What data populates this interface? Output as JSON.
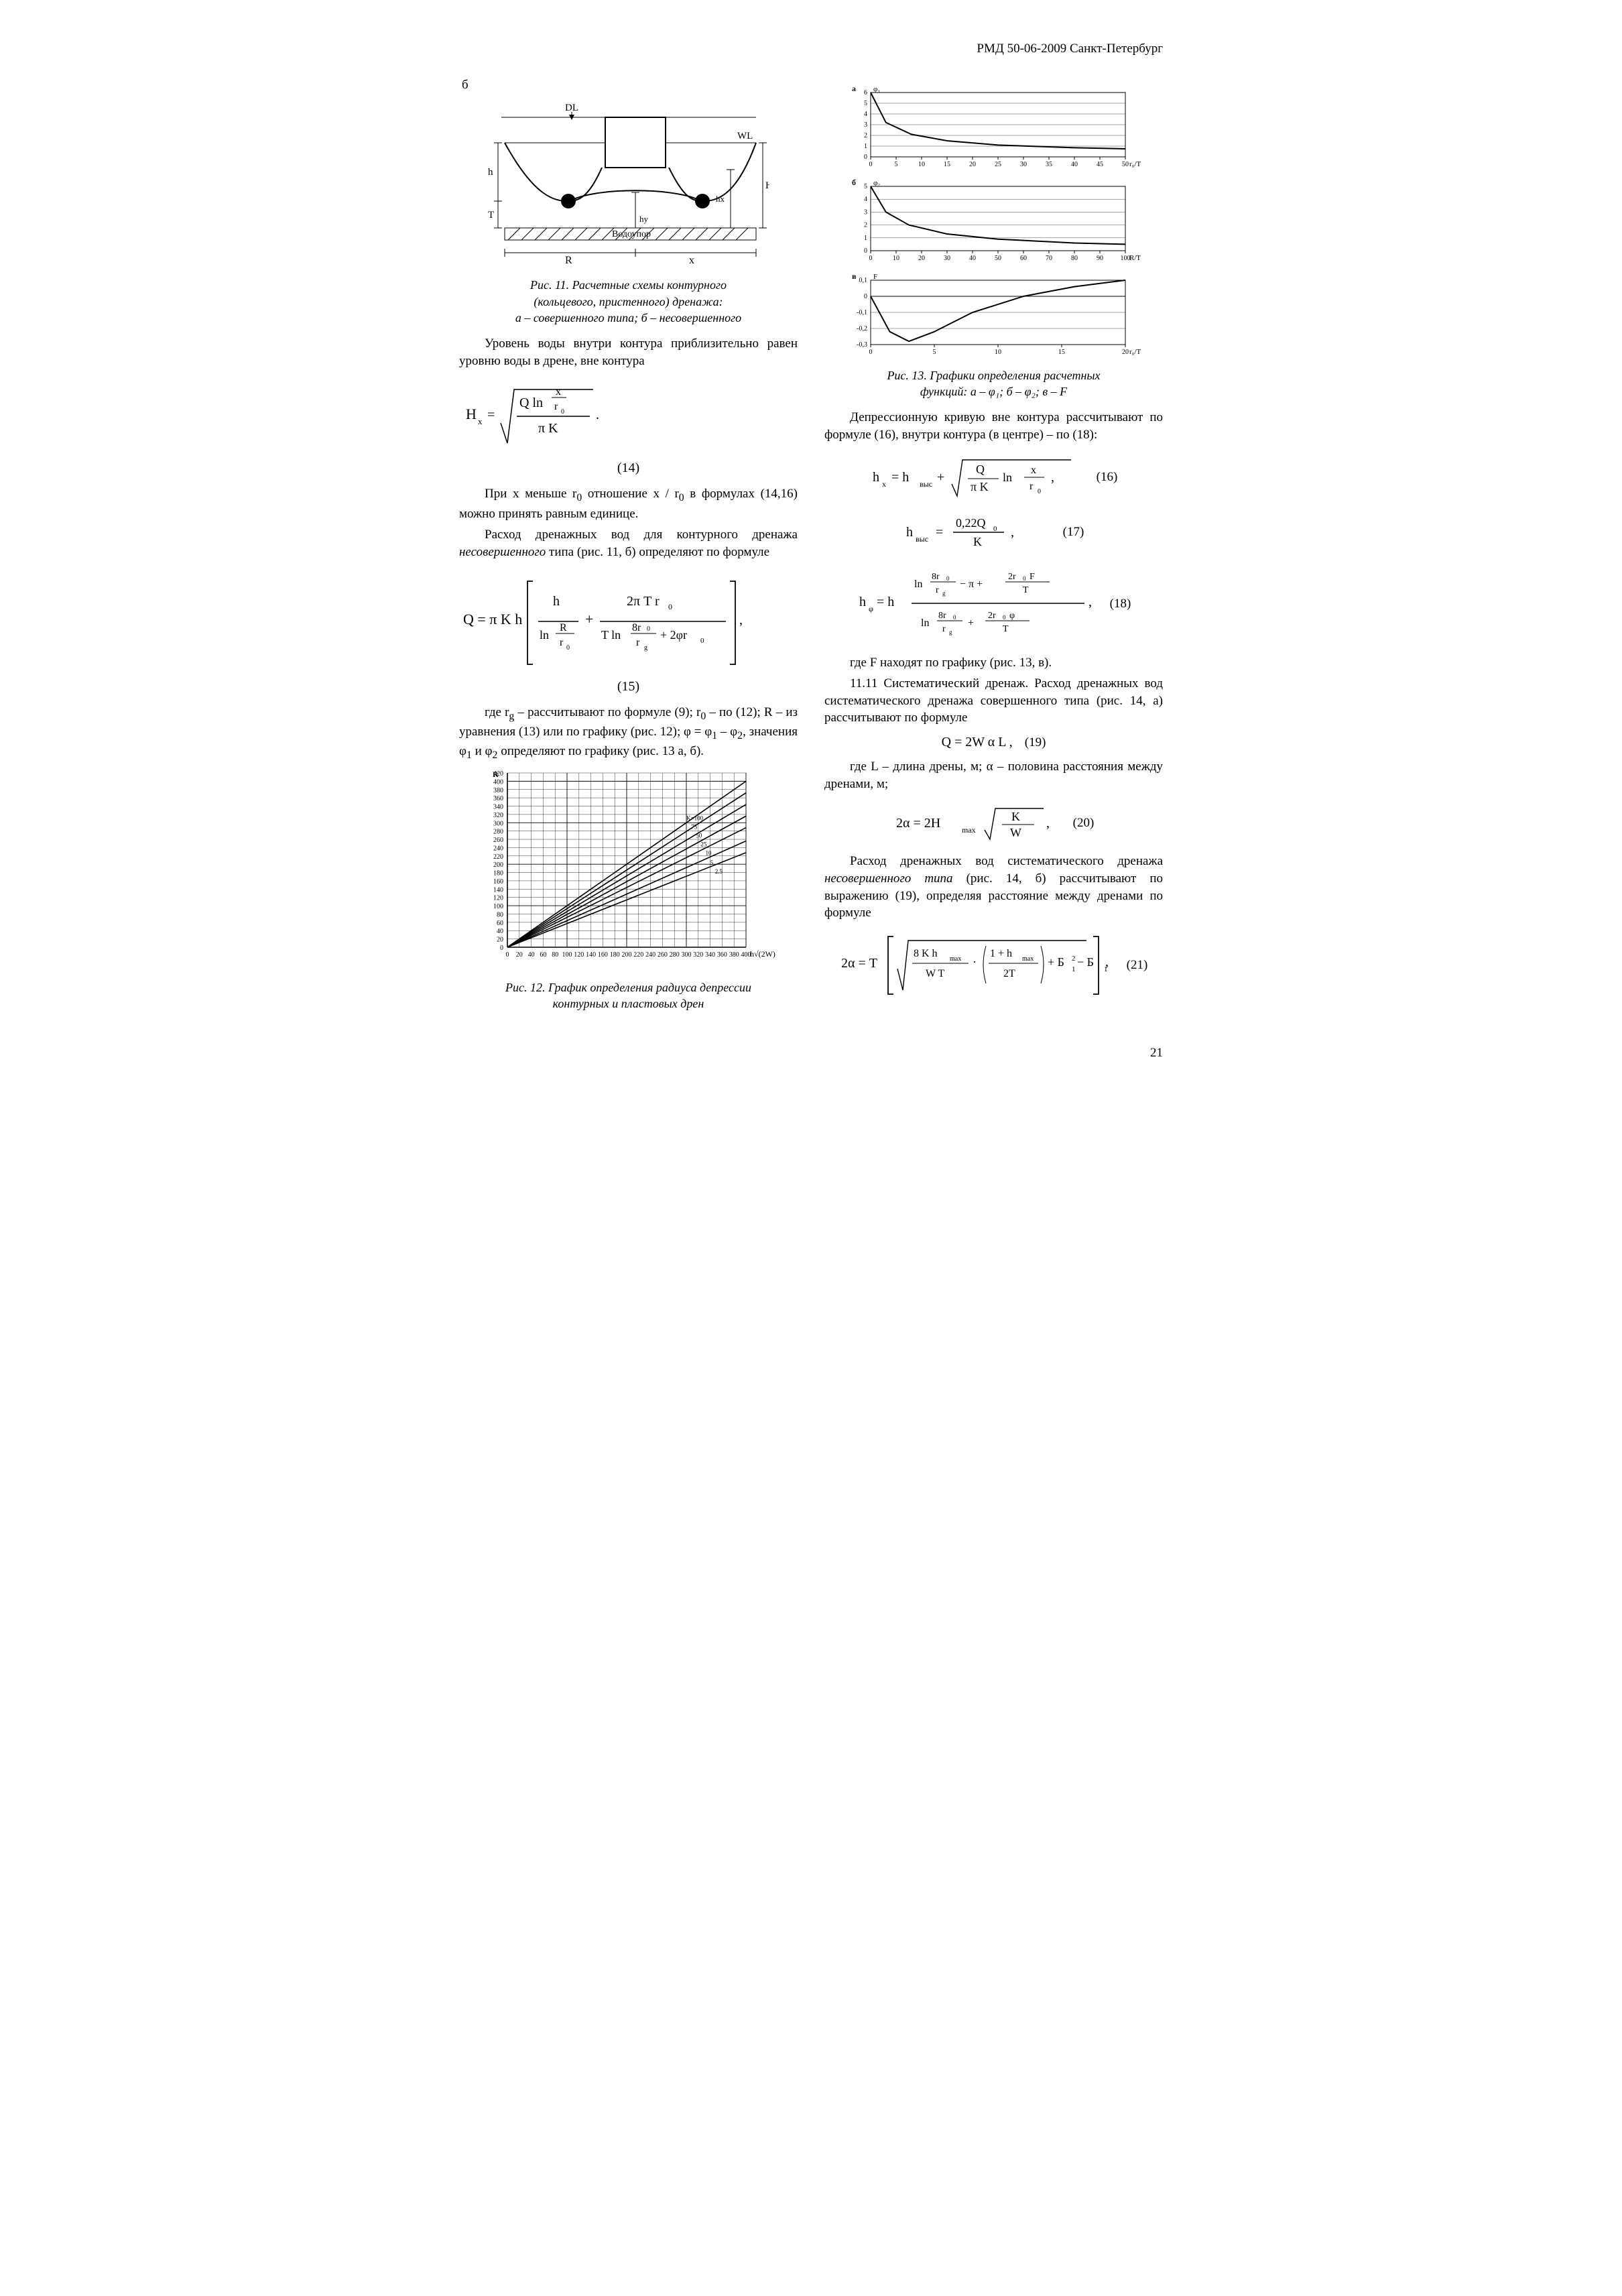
{
  "header": {
    "doc_code": "РМД 50-06-2009 Санкт-Петербург"
  },
  "page_number": "21",
  "left": {
    "panel_label": "б",
    "fig11": {
      "labels": {
        "DL": "DL",
        "WL": "WL",
        "Vodoupor": "Водоупор",
        "R": "R",
        "x": "x",
        "H": "H",
        "h": "h",
        "T": "T",
        "hx": "hх",
        "hy": "hу"
      },
      "caption_l1": "Рис. 11.  Расчетные схемы контурного",
      "caption_l2": "(кольцевого, пристенного) дренажа:",
      "caption_l3": "а – совершенного типа; б – несовершенного"
    },
    "p1": "Уровень воды внутри контура приблизительно равен уровню воды в дрене, вне контура",
    "eq14": {
      "lhs": "H",
      "sub": "x",
      "top1": "Q ln",
      "frac_top": "x",
      "frac_bot": "r",
      "r0sub": "0",
      "bottom": "π K",
      "num": "(14)"
    },
    "p2_a": "При x меньше r",
    "p2_b": "  отношение x / r",
    "p2_c": "  в формулах (14,16) можно принять равным единице.",
    "p3": "Расход дренажных вод для контурного дренажа ",
    "p3_em": "несовершенного",
    "p3_tail": " типа (рис. 11, б) определяют по формуле",
    "eq15": {
      "text": "Q = π K h",
      "t1_top": "h",
      "t1_bot_a": "ln",
      "t1_bot_top": "R",
      "t1_bot_bot": "r",
      "t1_bot_sub": "0",
      "t2_top": "2π T r",
      "t2_top_sub": "0",
      "t2_bot_a": "T ln",
      "t2_bot_top": "8r",
      "t2_bot_top_sub": "0",
      "t2_bot_bot": "r",
      "t2_bot_bot_sub": "g",
      "t2_bot_tail": " + 2φr",
      "t2_bot_tail_sub": "0",
      "num": "(15)"
    },
    "p4_a": "где r",
    "p4_b": " – рассчитывают по формуле (9); r",
    "p4_c": " – по (12); R – из уравнения (13) или по графику (рис. 12); φ = φ",
    "p4_d": " – φ",
    "p4_e": ", значения φ",
    "p4_f": " и φ",
    "p4_g": " определяют по графику (рис. 13 а, б).",
    "fig12": {
      "y_label": "R",
      "y_ticks": [
        "420",
        "400",
        "380",
        "360",
        "340",
        "320",
        "300",
        "280",
        "260",
        "240",
        "220",
        "200",
        "180",
        "160",
        "140",
        "120",
        "100",
        "80",
        "60",
        "40",
        "20",
        "0"
      ],
      "x_ticks": [
        "0",
        "20",
        "40",
        "60",
        "80",
        "100",
        "120",
        "140",
        "160",
        "180",
        "200",
        "220",
        "240",
        "260",
        "280",
        "300",
        "320",
        "340",
        "360",
        "380",
        "400"
      ],
      "x_label": "h√(2W)",
      "series": [
        {
          "label": "K=100",
          "slope": 1.0
        },
        {
          "label": "75",
          "slope": 0.93
        },
        {
          "label": "50",
          "slope": 0.86
        },
        {
          "label": "25",
          "slope": 0.79
        },
        {
          "label": "10",
          "slope": 0.72
        },
        {
          "label": "5",
          "slope": 0.64
        },
        {
          "label": "2.5",
          "slope": 0.57
        }
      ],
      "caption_l1": "Рис. 12.  График определения радиуса депрессии",
      "caption_l2": "контурных и пластовых дрен",
      "grid_color": "#000000",
      "bg": "#ffffff"
    }
  },
  "right": {
    "fig13": {
      "a_label": "а",
      "a_ylabel": "φ₁",
      "a_xlabel": "r₀/T",
      "a_yticks": [
        "6",
        "5",
        "4",
        "3",
        "2",
        "1",
        "0"
      ],
      "a_xticks": [
        "0",
        "5",
        "10",
        "15",
        "20",
        "25",
        "30",
        "35",
        "40",
        "45",
        "50"
      ],
      "a_curve": [
        [
          0,
          6
        ],
        [
          3,
          3.2
        ],
        [
          8,
          2.1
        ],
        [
          15,
          1.5
        ],
        [
          25,
          1.1
        ],
        [
          40,
          0.85
        ],
        [
          50,
          0.75
        ]
      ],
      "b_label": "б",
      "b_ylabel": "φ₂",
      "b_xlabel": "R/T",
      "b_yticks": [
        "5",
        "4",
        "3",
        "2",
        "1",
        "0"
      ],
      "b_xticks": [
        "0",
        "10",
        "20",
        "30",
        "40",
        "50",
        "60",
        "70",
        "80",
        "90",
        "100"
      ],
      "b_curve": [
        [
          0,
          5
        ],
        [
          6,
          3.0
        ],
        [
          15,
          2.0
        ],
        [
          30,
          1.3
        ],
        [
          50,
          0.9
        ],
        [
          80,
          0.6
        ],
        [
          100,
          0.5
        ]
      ],
      "c_label": "в",
      "c_ylabel": "F",
      "c_xlabel": "r₀/T",
      "c_yticks": [
        "0,1",
        "0",
        "-0,1",
        "-0,2",
        "-0,3"
      ],
      "c_xticks": [
        "0",
        "5",
        "10",
        "15",
        "20"
      ],
      "c_curve": [
        [
          0,
          0
        ],
        [
          1.5,
          -0.22
        ],
        [
          3,
          -0.28
        ],
        [
          5,
          -0.22
        ],
        [
          8,
          -0.1
        ],
        [
          12,
          0.0
        ],
        [
          16,
          0.06
        ],
        [
          20,
          0.1
        ]
      ],
      "caption_l1": "Рис. 13.  Графики определения расчетных",
      "caption_l2": "функций:  а – φ₁;  б – φ₂;  в – F"
    },
    "p1": "Депрессионную кривую вне контура рассчитывают по формуле (16), внутри контура (в центре) – по (18):",
    "eq16": {
      "lhs": "h",
      "lhs_sub": "x",
      "eq": " = h",
      "eq_sub": "выс",
      "plus": " + ",
      "radicand_top": "Q",
      "radicand_bot": "π K",
      "ln": " ln ",
      "frac_top": "x",
      "frac_bot": "r",
      "frac_bot_sub": "0",
      "num": "(16)"
    },
    "eq17": {
      "lhs": "h",
      "lhs_sub": "выс",
      "top": "0,22Q",
      "top_sub": "0",
      "bot": "K",
      "num": "(17)"
    },
    "eq18": {
      "lhs": "h",
      "lhs_sub": "φ",
      "mul": " = h ",
      "n_a": "ln",
      "n_frac1_top": "8r",
      "n_frac1_top_sub": "0",
      "n_frac1_bot": "r",
      "n_frac1_bot_sub": "g",
      "n_mid": " − π + ",
      "n_frac2_top": "2r",
      "n_frac2_top_sub": "0",
      "n_frac2_top2": " F",
      "n_frac2_bot": "T",
      "d_a": "ln",
      "d_frac1_top": "8r",
      "d_frac1_top_sub": "0",
      "d_frac1_bot": "r",
      "d_frac1_bot_sub": "g",
      "d_mid": " + ",
      "d_frac2_top": "2r",
      "d_frac2_top_sub": "0",
      "d_frac2_top2": " φ",
      "d_frac2_bot": "T",
      "num": "(18)"
    },
    "p2": "где F  находят по графику (рис. 13, в).",
    "p3": "11.11  Систематический дренаж. Расход дренажных вод систематического дренажа совершенного типа (рис. 14, а) рассчитывают по формуле",
    "eq19": {
      "text": "Q = 2W α L ,",
      "num": "(19)"
    },
    "p4": "где L – длина дрены, м;  α – половина расстояния между дренами, м;",
    "eq20": {
      "lhs": "2α = 2H",
      "sub": "max",
      "rad_top": "K",
      "rad_bot": "W",
      "num": "(20)"
    },
    "p5_a": "Расход дренажных вод систематического дренажа ",
    "p5_em": "несовершенного типа",
    "p5_b": " (рис. 14, б) рассчитывают по выражению (19), определяя расстояние между дренами по формуле",
    "eq21": {
      "lhs": "2α = T",
      "r1_top": "8 K h",
      "r1_top_sub": "max",
      "r1_bot": "W T",
      "mid": " · ",
      "r2_top": "1 + h",
      "r2_top_sub": "max",
      "r2_bot": "2T",
      "tail_a": " + Б",
      "tail_b": " − Б",
      "num": "(21)"
    }
  }
}
